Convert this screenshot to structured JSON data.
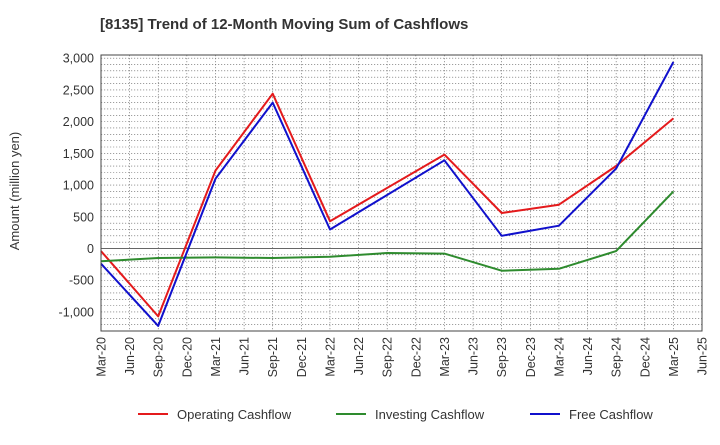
{
  "chart_data": {
    "type": "line",
    "title": "[8135]  Trend of 12-Month Moving Sum of Cashflows",
    "xlabel": "",
    "ylabel": "Amount (million yen)",
    "ylim": [
      -1300,
      3050
    ],
    "yticks": [
      -1000,
      -500,
      0,
      500,
      1000,
      1500,
      2000,
      2500,
      3000
    ],
    "ytick_labels": [
      "-1,000",
      "-500",
      "0",
      "500",
      "1,000",
      "1,500",
      "2,000",
      "2,500",
      "3,000"
    ],
    "x": [
      "Mar-20",
      "Jun-20",
      "Sep-20",
      "Dec-20",
      "Mar-21",
      "Jun-21",
      "Sep-21",
      "Dec-21",
      "Mar-22",
      "Jun-22",
      "Sep-22",
      "Dec-22",
      "Mar-23",
      "Jun-23",
      "Sep-23",
      "Dec-23",
      "Mar-24",
      "Jun-24",
      "Sep-24",
      "Dec-24",
      "Mar-25",
      "Jun-25"
    ],
    "grid": true,
    "legend_position": "bottom",
    "series": [
      {
        "name": "Operating Cashflow",
        "color": "#e41a1c",
        "values": [
          -40,
          null,
          -1070,
          null,
          1230,
          null,
          2440,
          null,
          430,
          null,
          null,
          null,
          1480,
          null,
          560,
          null,
          690,
          null,
          1300,
          null,
          2050,
          null
        ]
      },
      {
        "name": "Investing Cashflow",
        "color": "#2e8b2e",
        "values": [
          -200,
          null,
          -150,
          null,
          -140,
          null,
          -150,
          null,
          -130,
          null,
          -70,
          null,
          -80,
          null,
          -350,
          null,
          -320,
          null,
          -40,
          null,
          900,
          null
        ]
      },
      {
        "name": "Free Cashflow",
        "color": "#1010cc",
        "values": [
          -240,
          null,
          -1220,
          null,
          1100,
          null,
          2300,
          null,
          300,
          null,
          null,
          null,
          1390,
          null,
          200,
          null,
          360,
          null,
          1260,
          null,
          2940,
          null
        ]
      }
    ]
  }
}
